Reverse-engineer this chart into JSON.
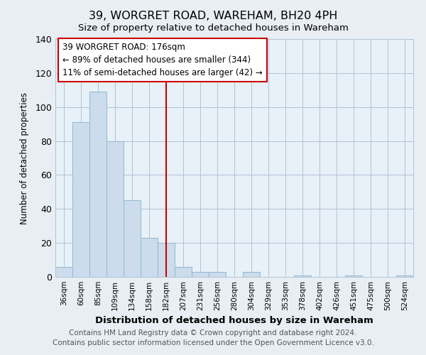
{
  "title": "39, WORGRET ROAD, WAREHAM, BH20 4PH",
  "subtitle": "Size of property relative to detached houses in Wareham",
  "xlabel": "Distribution of detached houses by size in Wareham",
  "ylabel": "Number of detached properties",
  "bar_labels": [
    "36sqm",
    "60sqm",
    "85sqm",
    "109sqm",
    "134sqm",
    "158sqm",
    "182sqm",
    "207sqm",
    "231sqm",
    "256sqm",
    "280sqm",
    "304sqm",
    "329sqm",
    "353sqm",
    "378sqm",
    "402sqm",
    "426sqm",
    "451sqm",
    "475sqm",
    "500sqm",
    "524sqm"
  ],
  "bar_heights": [
    6,
    91,
    109,
    80,
    45,
    23,
    20,
    6,
    3,
    3,
    0,
    3,
    0,
    0,
    1,
    0,
    0,
    1,
    0,
    0,
    1
  ],
  "bar_color": "#ccdcec",
  "bar_edge_color": "#90b8d0",
  "vline_x": 6,
  "vline_color": "#cc0000",
  "annotation_title": "39 WORGRET ROAD: 176sqm",
  "annotation_line1": "← 89% of detached houses are smaller (344)",
  "annotation_line2": "11% of semi-detached houses are larger (42) →",
  "annotation_box_color": "#ffffff",
  "annotation_box_edge": "#cc0000",
  "ylim": [
    0,
    140
  ],
  "yticks": [
    0,
    20,
    40,
    60,
    80,
    100,
    120,
    140
  ],
  "footnote1": "Contains HM Land Registry data © Crown copyright and database right 2024.",
  "footnote2": "Contains public sector information licensed under the Open Government Licence v3.0.",
  "background_color": "#e8eef4",
  "plot_bg_color": "#e8f0f8",
  "grid_color": "#b0c4d4",
  "title_fontsize": 11.5,
  "label_fontsize": 9.5,
  "footnote_fontsize": 7.5
}
